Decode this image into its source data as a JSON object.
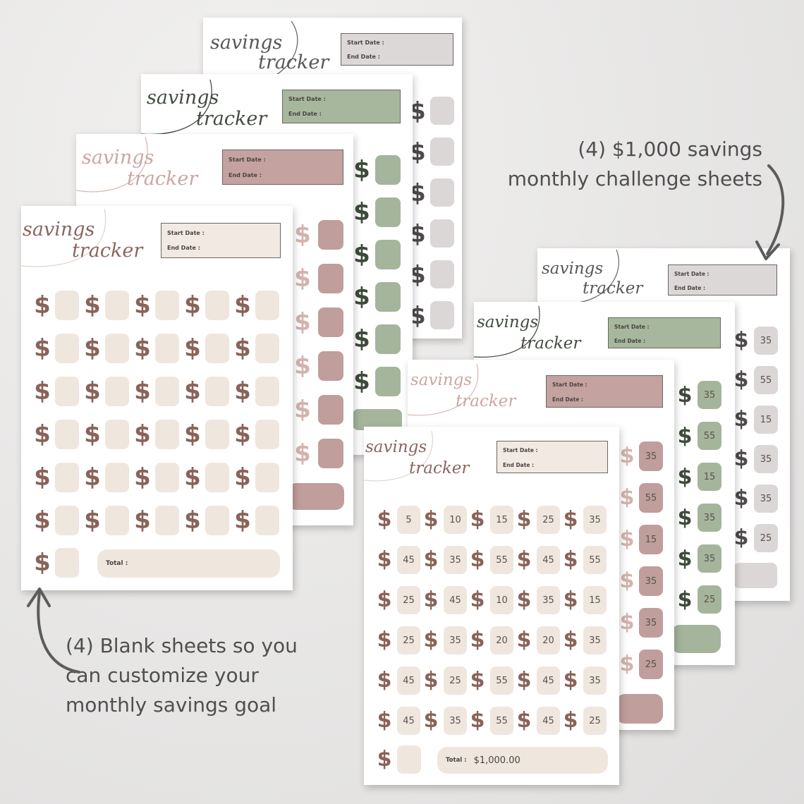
{
  "sheet": {
    "title_line1": "savings",
    "title_line2": "tracker",
    "start_label": "Start Date :",
    "end_label": "End Date :",
    "total_label": "Total :",
    "dollar_glyph": "$"
  },
  "challenge": {
    "values": [
      [
        "5",
        "10",
        "15",
        "25",
        "35"
      ],
      [
        "45",
        "35",
        "55",
        "45",
        "55"
      ],
      [
        "25",
        "45",
        "10",
        "35",
        "15"
      ],
      [
        "25",
        "35",
        "20",
        "20",
        "35"
      ],
      [
        "45",
        "25",
        "55",
        "45",
        "35"
      ],
      [
        "45",
        "35",
        "55",
        "45",
        "25"
      ]
    ],
    "total_value": "$1,000.00",
    "back_column_values": [
      "35",
      "55",
      "15",
      "35",
      "35",
      "25"
    ]
  },
  "captions": {
    "right_line1": "(4) $1,000 savings",
    "right_line2": "monthly challenge sheets",
    "left_line1": "(4) Blank sheets so you",
    "left_line2": "can customize your",
    "left_line3": "monthly savings goal"
  },
  "colors": {
    "beige_box": "#efe7de",
    "beige_dollar": "#8a6358",
    "rose_box": "#c09e9b",
    "rose_dollar": "#d3b3ad",
    "sage_box": "#a5b59c",
    "sage_dollar": "#3e4a3c",
    "grey_box": "#dbd7d7",
    "grey_dollar": "#4f4b4c"
  }
}
